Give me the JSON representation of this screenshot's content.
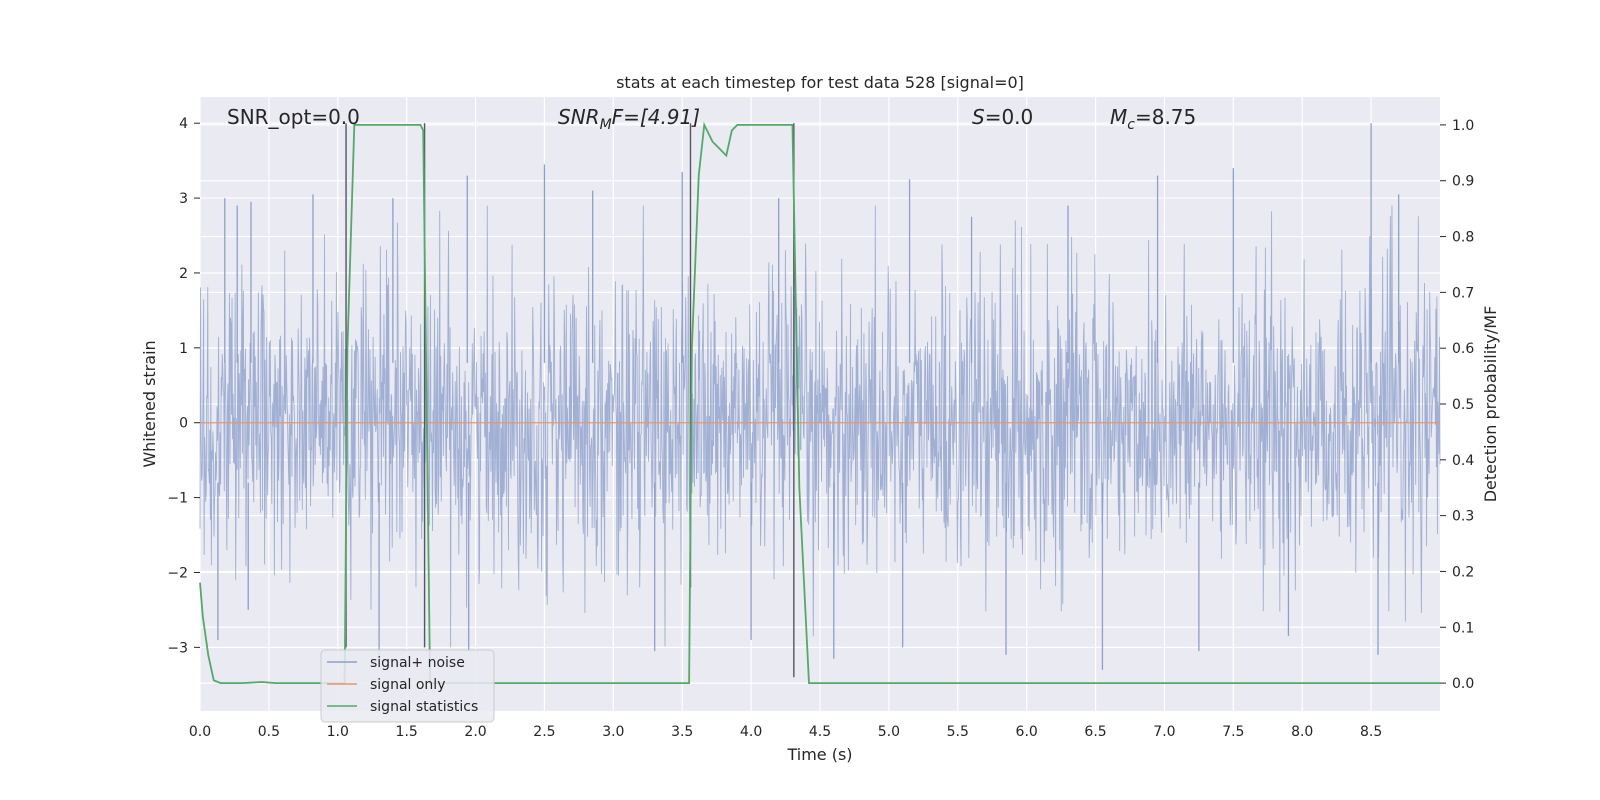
{
  "chart_data": {
    "type": "line",
    "title": "stats at each timestep for test data 528 [signal=0]",
    "xlabel": "Time (s)",
    "ylabel": "Whitened strain",
    "y2label": "Detection probability/MF",
    "xlim": [
      0,
      9.0
    ],
    "ylim": [
      -3.85,
      4.35
    ],
    "y2lim": [
      -0.05,
      1.05
    ],
    "xticks": [
      0.0,
      0.5,
      1.0,
      1.5,
      2.0,
      2.5,
      3.0,
      3.5,
      4.0,
      4.5,
      5.0,
      5.5,
      6.0,
      6.5,
      7.0,
      7.5,
      8.0,
      8.5
    ],
    "xtick_labels": [
      "0.0",
      "0.5",
      "1.0",
      "1.5",
      "2.0",
      "2.5",
      "3.0",
      "3.5",
      "4.0",
      "4.5",
      "5.0",
      "5.5",
      "6.0",
      "6.5",
      "7.0",
      "7.5",
      "8.0",
      "8.5"
    ],
    "yticks": [
      -3,
      -2,
      -1,
      0,
      1,
      2,
      3,
      4
    ],
    "ytick_labels": [
      "−3",
      "−2",
      "−1",
      "0",
      "1",
      "2",
      "3",
      "4"
    ],
    "y2ticks": [
      0.0,
      0.1,
      0.2,
      0.3,
      0.4,
      0.5,
      0.6,
      0.7,
      0.8,
      0.9,
      1.0
    ],
    "y2tick_labels": [
      "0.0",
      "0.1",
      "0.2",
      "0.3",
      "0.4",
      "0.5",
      "0.6",
      "0.7",
      "0.8",
      "0.9",
      "1.0"
    ],
    "grid": true,
    "legend_placement": "lower-left",
    "annotations": {
      "snr_opt": "SNR_opt=0.0",
      "snr_mf_main": "SNR",
      "snr_mf_sub": "M",
      "snr_mf_rest": "F=[4.91]",
      "s_main": "S",
      "s_rest": "=0.0",
      "mc_main": "M",
      "mc_sub": "c",
      "mc_rest": "=8.75"
    },
    "series": [
      {
        "name": "signal+ noise",
        "color": "#8da0cb",
        "note_points": "noise series rendered from summary envelope",
        "envelope_peaks": [
          [
            0.18,
            3.0
          ],
          [
            0.27,
            2.9
          ],
          [
            0.37,
            2.95
          ],
          [
            0.82,
            3.05
          ],
          [
            1.4,
            3.0
          ],
          [
            1.94,
            3.3
          ],
          [
            2.5,
            3.45
          ],
          [
            2.85,
            3.1
          ],
          [
            3.5,
            3.35
          ],
          [
            4.2,
            3.0
          ],
          [
            5.15,
            3.25
          ],
          [
            5.6,
            2.75
          ],
          [
            6.3,
            2.9
          ],
          [
            6.95,
            3.3
          ],
          [
            7.5,
            3.4
          ],
          [
            8.5,
            4.0
          ],
          [
            8.7,
            3.05
          ]
        ],
        "envelope_troughs": [
          [
            0.13,
            -2.9
          ],
          [
            0.35,
            -2.5
          ],
          [
            1.3,
            -3.2
          ],
          [
            1.95,
            -3.05
          ],
          [
            3.3,
            -3.05
          ],
          [
            4.0,
            -2.9
          ],
          [
            4.6,
            -3.15
          ],
          [
            5.1,
            -3.0
          ],
          [
            5.85,
            -3.1
          ],
          [
            6.55,
            -3.3
          ],
          [
            7.25,
            -3.05
          ],
          [
            7.9,
            -2.85
          ],
          [
            8.55,
            -3.1
          ]
        ]
      },
      {
        "name": "signal only",
        "color": "#e5966b",
        "x": [
          0.0,
          9.0
        ],
        "y": [
          0.0,
          0.0
        ]
      },
      {
        "name": "signal statistics",
        "color": "#55a868",
        "axis": "right",
        "x": [
          0.0,
          0.02,
          0.06,
          0.1,
          0.15,
          0.3,
          0.45,
          0.55,
          1.05,
          1.07,
          1.12,
          1.13,
          1.6,
          1.62,
          1.67,
          1.7,
          3.55,
          3.57,
          3.62,
          3.66,
          3.72,
          3.82,
          3.86,
          3.9,
          4.3,
          4.35,
          4.42,
          4.45,
          9.0
        ],
        "y": [
          0.18,
          0.12,
          0.05,
          0.005,
          0.0,
          0.0,
          0.002,
          0.0,
          0.0,
          0.6,
          1.0,
          1.0,
          1.0,
          0.99,
          0.0,
          0.0,
          0.0,
          0.6,
          0.91,
          1.0,
          0.97,
          0.945,
          0.99,
          1.0,
          1.0,
          0.35,
          0.0,
          0.0,
          0.0
        ]
      }
    ],
    "vertical_markers": [
      {
        "x": 1.06,
        "y_top": 4.0,
        "y_bottom": -3.0
      },
      {
        "x": 1.63,
        "y_top": 4.0,
        "y_bottom": -3.0
      },
      {
        "x": 3.56,
        "y_top": 4.0,
        "y_bottom": -2.2
      },
      {
        "x": 4.31,
        "y_top": 4.0,
        "y_bottom": -3.4
      }
    ]
  },
  "legend": {
    "items": [
      {
        "label": "signal+ noise",
        "color": "#8da0cb"
      },
      {
        "label": "signal only",
        "color": "#e5966b"
      },
      {
        "label": "signal statistics",
        "color": "#55a868"
      }
    ]
  }
}
